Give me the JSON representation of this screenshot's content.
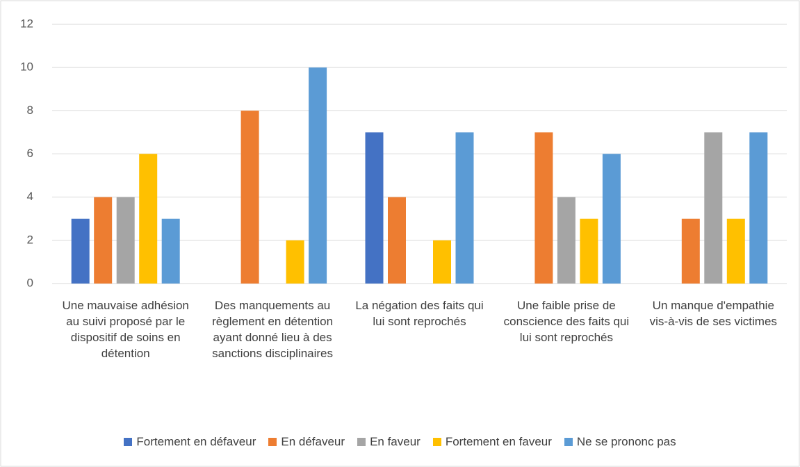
{
  "chart_data": {
    "type": "bar",
    "categories": [
      "Une mauvaise adhésion au suivi proposé par le dispositif de soins en détention",
      "Des manquements au règlement en détention ayant donné lieu à des sanctions disciplinaires",
      "La négation des faits qui lui sont reprochés",
      "Une faible prise de conscience des faits qui lui sont reprochés",
      "Un manque d'empathie vis-à-vis de ses victimes"
    ],
    "series": [
      {
        "name": "Fortement en défaveur",
        "color": "#4472c4",
        "values": [
          3,
          0,
          7,
          0,
          0
        ]
      },
      {
        "name": "En défaveur",
        "color": "#ed7d31",
        "values": [
          4,
          8,
          4,
          7,
          3
        ]
      },
      {
        "name": "En faveur",
        "color": "#a5a5a5",
        "values": [
          4,
          0,
          0,
          4,
          7
        ]
      },
      {
        "name": "Fortement en faveur",
        "color": "#ffc000",
        "values": [
          6,
          2,
          2,
          3,
          3
        ]
      },
      {
        "name": "Ne se prononc pas",
        "color": "#5b9bd5",
        "values": [
          3,
          10,
          7,
          6,
          7
        ]
      }
    ],
    "ylim": [
      0,
      12
    ],
    "yticks": [
      0,
      2,
      4,
      6,
      8,
      10,
      12
    ],
    "grid": true,
    "legend": "bottom"
  }
}
